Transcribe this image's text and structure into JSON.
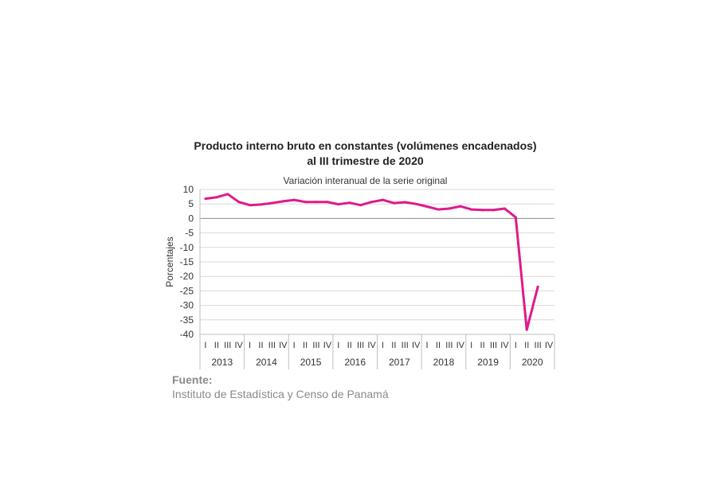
{
  "chart_data": {
    "type": "line",
    "title_lines": [
      "Producto interno bruto en constantes (volúmenes encadenados)",
      "al III trimestre de 2020"
    ],
    "subtitle": "Variación interanual de la serie original",
    "ylabel": "Porcentajes",
    "xlabel": "",
    "ylim": [
      -40,
      10
    ],
    "ytick_step": 5,
    "grid": true,
    "quarter_labels": [
      "I",
      "II",
      "III",
      "IV"
    ],
    "years": [
      "2013",
      "2014",
      "2015",
      "2016",
      "2017",
      "2018",
      "2019",
      "2020"
    ],
    "series": [
      {
        "color": "#e0198c",
        "values": [
          6.8,
          7.3,
          8.4,
          5.7,
          4.6,
          4.8,
          5.3,
          5.9,
          6.4,
          5.7,
          5.7,
          5.7,
          4.9,
          5.4,
          4.6,
          5.7,
          6.4,
          5.3,
          5.6,
          5.0,
          4.1,
          3.1,
          3.4,
          4.2,
          3.1,
          2.9,
          2.9,
          3.4,
          0.4,
          -38.4,
          -23.6
        ]
      }
    ]
  },
  "source": {
    "label": "Fuente:",
    "text": "Instituto de Estadística y Censo de Panamá"
  }
}
